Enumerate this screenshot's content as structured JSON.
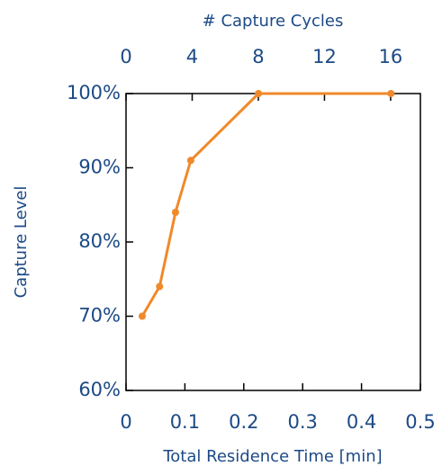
{
  "chart_data": {
    "type": "line",
    "xlabel": "Total Residence Time [min]",
    "ylabel": "Capture Level",
    "x2label": "# Capture Cycles",
    "x": [
      0.0275,
      0.057,
      0.084,
      0.11,
      0.225,
      0.45
    ],
    "series": [
      {
        "name": "Capture Level",
        "color": "#f0892a",
        "values": [
          70,
          74,
          84,
          91,
          100,
          100
        ]
      }
    ],
    "xlim": [
      0,
      0.5
    ],
    "xticks": [
      0,
      0.1,
      0.2,
      0.3,
      0.4,
      0.5
    ],
    "x2lim": [
      0,
      17.8
    ],
    "x2ticks": [
      0,
      4,
      8,
      12,
      16
    ],
    "ylim": [
      60,
      100
    ],
    "yticks": [
      {
        "value": 60,
        "label": "60%"
      },
      {
        "value": 70,
        "label": "70%"
      },
      {
        "value": 80,
        "label": "80%"
      },
      {
        "value": 90,
        "label": "90%"
      },
      {
        "value": 100,
        "label": "100%"
      }
    ]
  }
}
